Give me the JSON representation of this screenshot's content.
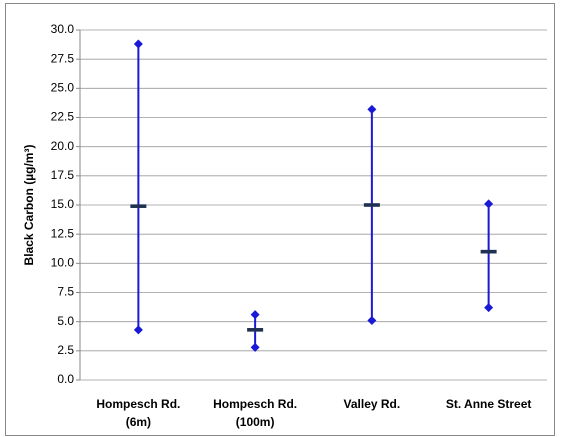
{
  "chart_data": {
    "type": "hilo",
    "y_label": "Black Carbon  (µg/m³)",
    "categories": [
      [
        "Hompesch Rd.",
        "(6m)"
      ],
      [
        "Hompesch Rd.",
        "(100m)"
      ],
      [
        "Valley Rd."
      ],
      [
        "St. Anne Street"
      ]
    ],
    "high": [
      28.8,
      5.6,
      23.2,
      15.1
    ],
    "low": [
      4.3,
      2.8,
      5.1,
      6.2
    ],
    "mean": [
      14.9,
      4.3,
      15.0,
      11.0
    ],
    "color": "#1a1ad6",
    "mean_color": "#1f3050",
    "ylim": [
      0,
      30
    ],
    "yticks": [
      {
        "value": 0,
        "label": "0.0"
      },
      2.5,
      {
        "value": 5,
        "label": "5.0"
      },
      7.5,
      {
        "value": 10,
        "label": "10.0"
      },
      12.5,
      {
        "value": 15,
        "label": "15.0"
      },
      17.5,
      {
        "value": 20,
        "label": "20.0"
      },
      22.5,
      {
        "value": 25,
        "label": "25.0"
      },
      27.5,
      {
        "value": 30,
        "label": "30.0"
      }
    ],
    "grid": true
  }
}
